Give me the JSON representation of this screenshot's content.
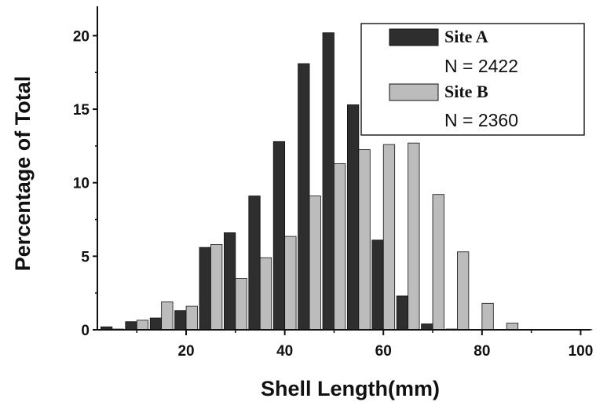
{
  "chart_data": {
    "type": "bar",
    "title": "",
    "xlabel": "Shell Length(mm)",
    "ylabel": "Percentage of Total",
    "xlim": [
      2,
      102
    ],
    "ylim": [
      0,
      22
    ],
    "x_ticks": [
      20,
      40,
      60,
      80,
      100
    ],
    "y_ticks": [
      0,
      5,
      10,
      15,
      20
    ],
    "grid": false,
    "legend_position": "top-right",
    "bin_centers": [
      5,
      10,
      15,
      20,
      25,
      30,
      35,
      40,
      45,
      50,
      55,
      60,
      65,
      70,
      75,
      80,
      85,
      90,
      95,
      100
    ],
    "series": [
      {
        "name": "Site A",
        "n_label": "N = 2422",
        "color": "#2e2e2e",
        "values": [
          0.2,
          0.55,
          0.8,
          1.3,
          5.6,
          6.6,
          9.1,
          12.8,
          18.1,
          20.2,
          15.3,
          6.1,
          2.3,
          0.4,
          0.05,
          0,
          0,
          0,
          0,
          0
        ]
      },
      {
        "name": "Site B",
        "n_label": "N = 2360",
        "color": "#bcbcbc",
        "values": [
          0.05,
          0.65,
          1.9,
          1.6,
          5.8,
          3.5,
          4.9,
          6.35,
          9.1,
          11.3,
          12.25,
          12.6,
          12.7,
          9.2,
          5.3,
          1.8,
          0.45,
          0.02,
          0.02,
          0.02
        ]
      }
    ]
  }
}
